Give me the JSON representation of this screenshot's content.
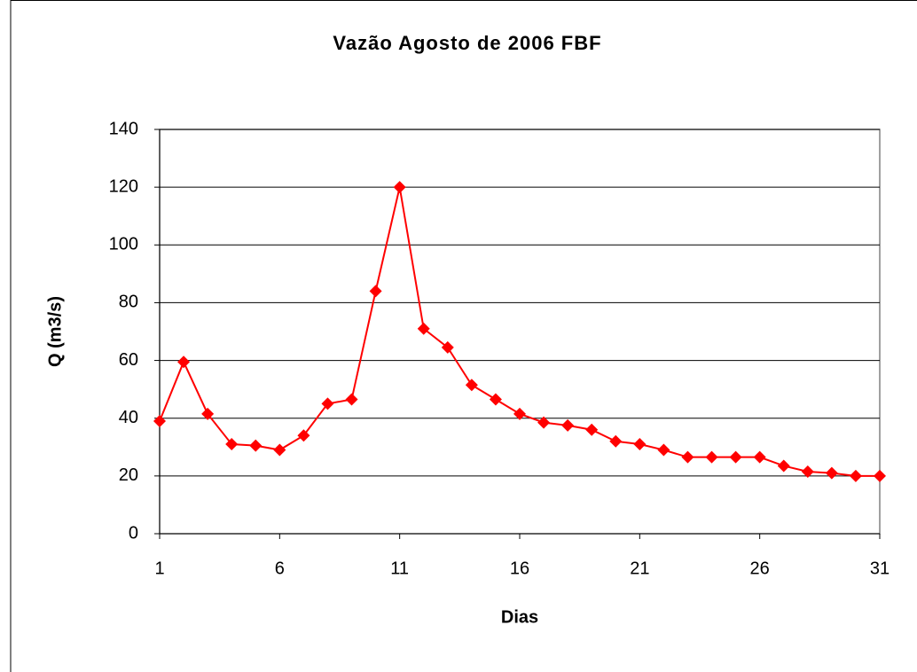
{
  "chart_data": {
    "type": "line",
    "title": "Vazão Agosto de 2006 FBF",
    "x_label": "Dias",
    "y_label": "Q (m3/s)",
    "x": [
      1,
      2,
      3,
      4,
      5,
      6,
      7,
      8,
      9,
      10,
      11,
      12,
      13,
      14,
      15,
      16,
      17,
      18,
      19,
      20,
      21,
      22,
      23,
      24,
      25,
      26,
      27,
      28,
      29,
      30,
      31
    ],
    "series": [
      {
        "name": "Vazão",
        "color": "#ff0000",
        "values": [
          39,
          59.5,
          41.5,
          31,
          30.5,
          29,
          34,
          45,
          46.5,
          84,
          120,
          71,
          64.5,
          51.5,
          46.5,
          41.5,
          38.5,
          37.5,
          36,
          32,
          31,
          29,
          26.5,
          26.5,
          26.5,
          26.5,
          23.5,
          21.5,
          21,
          20,
          20
        ]
      }
    ],
    "xlim": [
      1,
      31
    ],
    "xticks": [
      1,
      6,
      11,
      16,
      21,
      26,
      31
    ],
    "ylim": [
      0,
      140
    ],
    "yticks": [
      0,
      20,
      40,
      60,
      80,
      100,
      120,
      140
    ],
    "grid": true
  }
}
